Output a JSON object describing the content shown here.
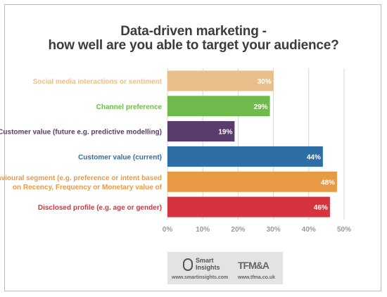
{
  "chart_data": {
    "type": "bar",
    "orientation": "horizontal",
    "title_lines": [
      "Data-driven marketing -",
      "how well are you able to target your audience?"
    ],
    "categories": [
      {
        "lines": [
          "Social media interactions or sentiment"
        ],
        "value": 30,
        "label": "30%",
        "color": "#ebbf8c"
      },
      {
        "lines": [
          "Channel preference"
        ],
        "value": 29,
        "label": "29%",
        "color": "#6fba4a"
      },
      {
        "lines": [
          "Customer value (future e.g. predictive modelling)"
        ],
        "value": 19,
        "label": "19%",
        "color": "#5a3c6c"
      },
      {
        "lines": [
          "Customer value (current)"
        ],
        "value": 44,
        "label": "44%",
        "color": "#2e6ea6"
      },
      {
        "lines": [
          "Behavioural segment (e.g. preference or intent based",
          "on Recency, Frequency or Monetary value of"
        ],
        "value": 48,
        "label": "48%",
        "color": "#e89a44"
      },
      {
        "lines": [
          "Disclosed profile (e.g. age or gender)"
        ],
        "value": 46,
        "label": "46%",
        "color": "#d5343f"
      }
    ],
    "xlim": [
      0,
      50
    ],
    "ticks": [
      "0%",
      "10%",
      "20%",
      "30%",
      "40%",
      "50%"
    ],
    "grid": true
  },
  "footer": {
    "brand1_line1": "Smart",
    "brand1_line2": "Insights",
    "brand2": "TFM&A",
    "url1": "www.smartinsights.com",
    "url2": "www.tfma.co.uk"
  }
}
